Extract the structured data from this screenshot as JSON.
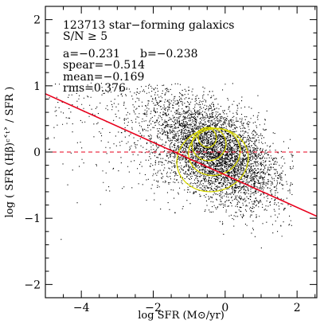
{
  "chart_data": {
    "type": "scatter",
    "xlabel": "log SFR (M⊙/yr)",
    "ylabel": "log ( SFR (Hβ)ᶜ˂ᵗ˃ / SFR )",
    "xlim": [
      -5,
      2.55
    ],
    "ylim": [
      -2.2,
      2.2
    ],
    "xticks": [
      -4,
      -2,
      0,
      2
    ],
    "yticks": [
      -2,
      -1,
      0,
      1,
      2
    ],
    "grid": false,
    "annotations": [
      "123713 star−forming galaxics",
      "S/N ≥ 5",
      "a=−0.231",
      "b=−0.238",
      "spear=−0.514",
      "mean=−0.169",
      "rms=0.376"
    ],
    "fit_line": {
      "slope": -0.231,
      "intercept": -0.238,
      "x": [
        -5,
        2.55
      ],
      "color": "#e8001c"
    },
    "reference_line": {
      "y": 0,
      "style": "dashed",
      "color": "#e8001c"
    },
    "contours": [
      {
        "level": 1,
        "center": [
          -0.35,
          -0.12
        ],
        "rx": 2.0,
        "ry": 0.95,
        "angle": -14
      },
      {
        "level": 2,
        "center": [
          -0.3,
          0.0
        ],
        "rx": 1.45,
        "ry": 0.7,
        "angle": -16
      },
      {
        "level": 3,
        "center": [
          -0.45,
          0.12
        ],
        "rx": 0.95,
        "ry": 0.5,
        "angle": -18
      },
      {
        "level": 4,
        "center": [
          -0.5,
          0.22
        ],
        "rx": 0.5,
        "ry": 0.3,
        "angle": -20
      }
    ],
    "contour_color": "#d8d800",
    "point_color": "#000000",
    "points": {
      "n_shown": 123713,
      "core": {
        "x_mean": -0.3,
        "x_std": 0.85,
        "slope": -0.231,
        "intercept": -0.238,
        "y_std": 0.35
      }
    }
  }
}
